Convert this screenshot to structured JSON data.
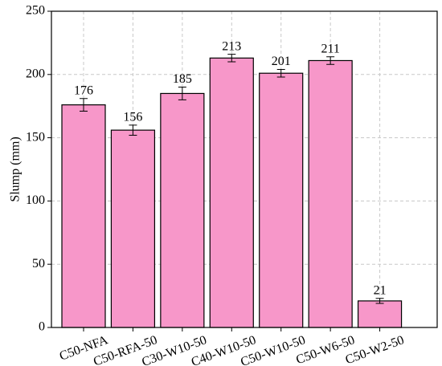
{
  "chart_data": {
    "type": "bar",
    "y_label": "Slump (mm)",
    "categories": [
      "C50-NFA",
      "C50-RFA-50",
      "C30-W10-50",
      "C40-W10-50",
      "C50-W10-50",
      "C50-W6-50",
      "C50-W2-50"
    ],
    "values": [
      176,
      156,
      185,
      213,
      201,
      211,
      21
    ],
    "errors": [
      5,
      4,
      5,
      3,
      3,
      3,
      2
    ],
    "color": "#f797c9",
    "ylim": [
      0,
      250
    ],
    "yticks": [
      0,
      50,
      100,
      150,
      200,
      250
    ],
    "grid": true
  }
}
